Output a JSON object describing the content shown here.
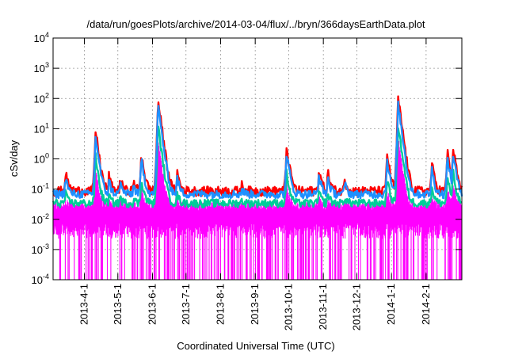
{
  "chart_data": {
    "type": "line",
    "title": "/data/run/goesPlots/archive/2014-03-04/flux/../bryn/366daysEarthData.plot",
    "xlabel": "Coordinated Universal Time (UTC)",
    "ylabel": "cSv/day",
    "yscale": "log",
    "ylim": [
      0.0001,
      10000
    ],
    "xlim": [
      "2013-03-04",
      "2014-03-05"
    ],
    "grid": true,
    "y_ticks": [
      {
        "value": 0.0001,
        "base": "10",
        "exp": "-4"
      },
      {
        "value": 0.001,
        "base": "10",
        "exp": "-3"
      },
      {
        "value": 0.01,
        "base": "10",
        "exp": "-2"
      },
      {
        "value": 0.1,
        "base": "10",
        "exp": "-1"
      },
      {
        "value": 1,
        "base": "10",
        "exp": "0"
      },
      {
        "value": 10,
        "base": "10",
        "exp": "1"
      },
      {
        "value": 100,
        "base": "10",
        "exp": "2"
      },
      {
        "value": 1000,
        "base": "10",
        "exp": "3"
      },
      {
        "value": 10000,
        "base": "10",
        "exp": "4"
      }
    ],
    "x_ticks": [
      {
        "date": "2013-04-01",
        "label": "2013-4-1"
      },
      {
        "date": "2013-05-01",
        "label": "2013-5-1"
      },
      {
        "date": "2013-06-01",
        "label": "2013-6-1"
      },
      {
        "date": "2013-07-01",
        "label": "2013-7-1"
      },
      {
        "date": "2013-08-01",
        "label": "2013-8-1"
      },
      {
        "date": "2013-09-01",
        "label": "2013-9-1"
      },
      {
        "date": "2013-10-01",
        "label": "2013-10-1"
      },
      {
        "date": "2013-11-01",
        "label": "2013-11-1"
      },
      {
        "date": "2013-12-01",
        "label": "2013-12-1"
      },
      {
        "date": "2014-01-01",
        "label": "2014-1-1"
      },
      {
        "date": "2014-02-01",
        "label": "2014-2-1"
      }
    ],
    "series": [
      {
        "color": "#ff0000",
        "baseline": 0.09
      },
      {
        "color": "#1e90ff",
        "baseline": 0.07
      },
      {
        "color": "#00cc99",
        "baseline": 0.035
      },
      {
        "color": "#ff00ff",
        "baseline": 0.015,
        "min": 0.0001
      }
    ],
    "peaks": [
      {
        "date": "2013-03-15",
        "value": 0.4
      },
      {
        "date": "2013-04-11",
        "value": 9
      },
      {
        "date": "2013-04-23",
        "value": 0.3
      },
      {
        "date": "2013-05-03",
        "value": 0.25
      },
      {
        "date": "2013-05-15",
        "value": 0.2
      },
      {
        "date": "2013-05-22",
        "value": 1.7
      },
      {
        "date": "2013-06-06",
        "value": 90
      },
      {
        "date": "2013-06-23",
        "value": 0.4
      },
      {
        "date": "2013-08-20",
        "value": 0.15
      },
      {
        "date": "2013-09-29",
        "value": 2.6
      },
      {
        "date": "2013-10-28",
        "value": 0.5
      },
      {
        "date": "2013-11-05",
        "value": 0.4
      },
      {
        "date": "2013-11-20",
        "value": 0.25
      },
      {
        "date": "2013-12-28",
        "value": 1.6
      },
      {
        "date": "2014-01-07",
        "value": 100
      },
      {
        "date": "2014-02-06",
        "value": 0.8
      },
      {
        "date": "2014-02-20",
        "value": 2
      },
      {
        "date": "2014-02-25",
        "value": 2.7
      }
    ]
  }
}
